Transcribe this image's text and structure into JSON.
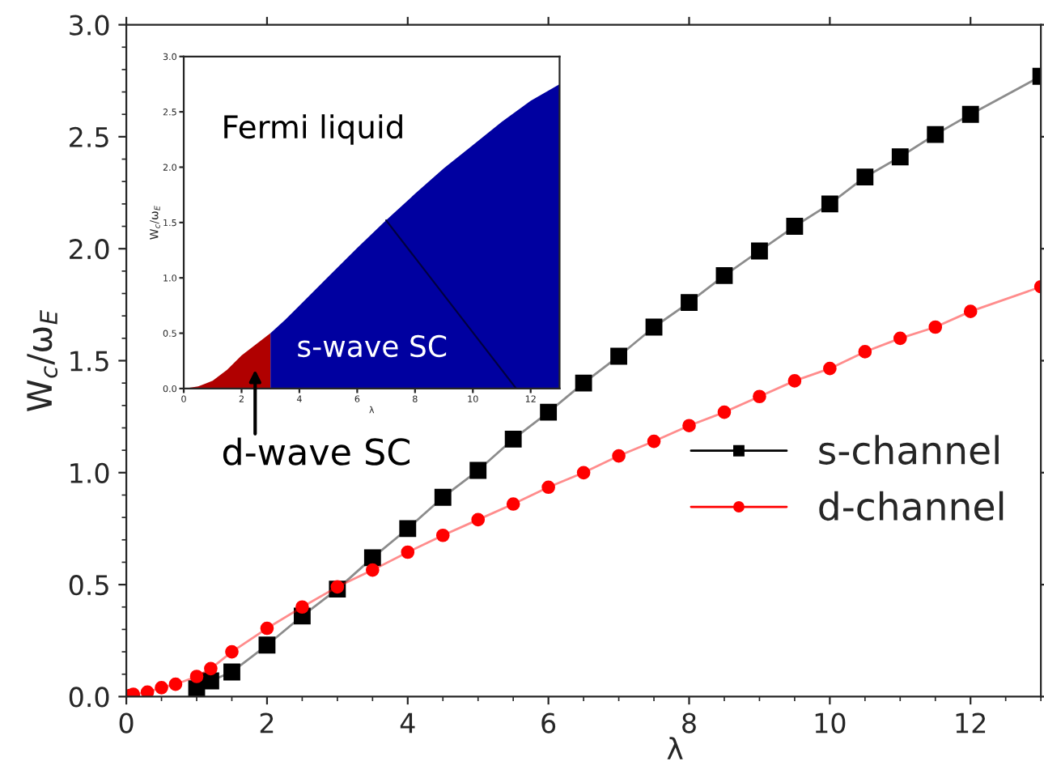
{
  "chart_data": [
    {
      "type": "line",
      "xlabel": "λ",
      "ylabel": "W$_{c}$/ω$_{E}$",
      "xlim": [
        0,
        13
      ],
      "ylim": [
        0,
        3
      ],
      "xticks": [
        0,
        2,
        4,
        6,
        8,
        10,
        12
      ],
      "yticks": [
        {
          "value": 0,
          "label": "0.0"
        },
        0.5,
        {
          "value": 1,
          "label": "1.0"
        },
        1.5,
        {
          "value": 2,
          "label": "2.0"
        },
        2.5,
        {
          "value": 3,
          "label": "3.0"
        }
      ],
      "legend": "right",
      "grid": false,
      "series": [
        {
          "name": "s-channel",
          "color": "#000000",
          "marker": "square",
          "x": [
            1,
            1.2,
            1.5,
            2,
            2.5,
            3,
            3.5,
            4,
            4.5,
            5,
            5.5,
            6,
            6.5,
            7,
            7.5,
            8,
            8.5,
            9,
            9.5,
            10,
            10.5,
            11,
            11.5,
            12,
            13
          ],
          "values": [
            0.035,
            0.07,
            0.11,
            0.23,
            0.36,
            0.48,
            0.62,
            0.75,
            0.89,
            1.01,
            1.15,
            1.27,
            1.4,
            1.52,
            1.65,
            1.76,
            1.88,
            1.99,
            2.1,
            2.2,
            2.32,
            2.41,
            2.51,
            2.6,
            2.77
          ]
        },
        {
          "name": "d-channel",
          "color": "#ff0000",
          "marker": "circle",
          "x": [
            0.05,
            0.1,
            0.3,
            0.5,
            0.7,
            1,
            1.2,
            1.5,
            2,
            2.5,
            3,
            3.5,
            4,
            4.5,
            5,
            5.5,
            6,
            6.5,
            7,
            7.5,
            8,
            8.5,
            9,
            9.5,
            10,
            10.5,
            11,
            11.5,
            12,
            13
          ],
          "values": [
            0.005,
            0.01,
            0.02,
            0.04,
            0.055,
            0.09,
            0.125,
            0.2,
            0.305,
            0.4,
            0.49,
            0.565,
            0.645,
            0.72,
            0.79,
            0.86,
            0.935,
            1.0,
            1.075,
            1.14,
            1.21,
            1.27,
            1.34,
            1.41,
            1.465,
            1.54,
            1.6,
            1.65,
            1.72,
            1.83
          ]
        }
      ]
    },
    {
      "type": "area",
      "xlabel": "λ",
      "ylabel": "W$_{c}$/ω$_{E}$",
      "xlim": [
        0,
        13
      ],
      "ylim": [
        0,
        3
      ],
      "xticks": [
        0,
        2,
        4,
        6,
        8,
        10,
        12
      ],
      "yticks": [
        {
          "value": 0,
          "label": "0.0"
        },
        0.5,
        {
          "value": 1,
          "label": "1.0"
        },
        1.5,
        {
          "value": 2,
          "label": "2.0"
        },
        2.5,
        {
          "value": 3,
          "label": "3.0"
        }
      ],
      "annotations": [
        "Fermi liquid",
        "s-wave SC",
        "d-wave SC"
      ],
      "series": [
        {
          "color": "#b00000",
          "x": [
            0,
            0.5,
            1,
            1.5,
            2,
            2.5,
            3
          ],
          "values": [
            0,
            0.02,
            0.07,
            0.17,
            0.3,
            0.4,
            0.5
          ]
        },
        {
          "color": "#0000a0",
          "x": [
            3,
            3.5,
            4,
            5,
            6,
            7,
            8,
            9,
            10,
            11,
            12,
            13
          ],
          "values": [
            0.5,
            0.62,
            0.75,
            1.01,
            1.27,
            1.52,
            1.76,
            1.99,
            2.2,
            2.41,
            2.6,
            2.75
          ]
        },
        {
          "type": "line",
          "color": "#000040",
          "x": [
            7,
            11.5
          ],
          "values": [
            1.52,
            0
          ]
        }
      ]
    }
  ]
}
